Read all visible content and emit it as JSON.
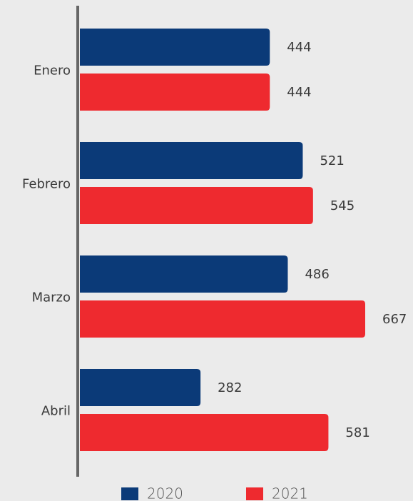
{
  "chart_data": {
    "type": "bar",
    "orientation": "horizontal",
    "categories": [
      "Enero",
      "Febrero",
      "Marzo",
      "Abril"
    ],
    "series": [
      {
        "name": "2020",
        "color": "#0b3a78",
        "values": [
          444,
          521,
          486,
          282
        ]
      },
      {
        "name": "2021",
        "color": "#ee2a2f",
        "values": [
          444,
          545,
          667,
          581
        ]
      }
    ],
    "legend": "bottom"
  }
}
